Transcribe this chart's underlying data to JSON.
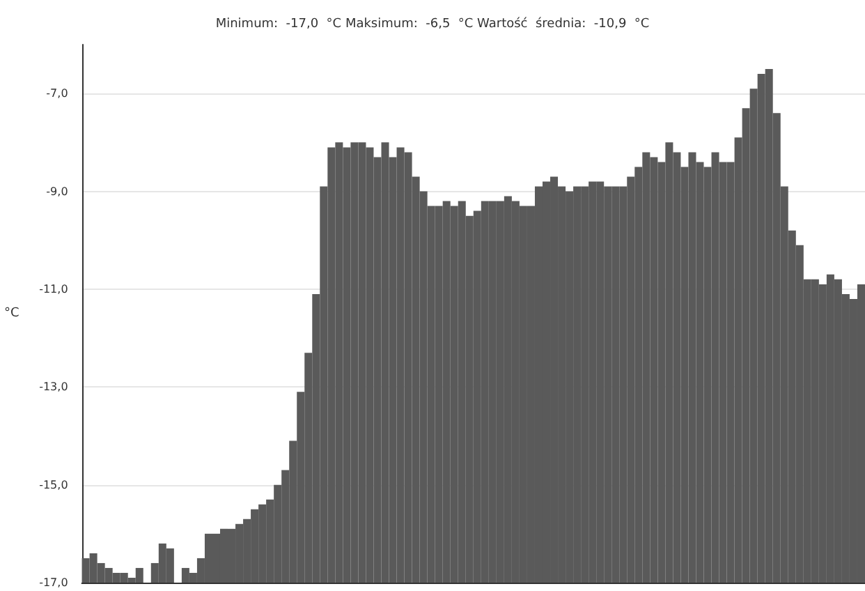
{
  "chart_data": {
    "type": "bar",
    "title": "Minimum:  -17,0  °C Maksimum:  -6,5  °C Wartość  średnia:  -10,9  °C",
    "ylabel": "°C",
    "categories": [
      null,
      null,
      null,
      null,
      null,
      null,
      null,
      null,
      null,
      null,
      null,
      null,
      null,
      null,
      null,
      null,
      null,
      null,
      null,
      null,
      null,
      null,
      null,
      null,
      null,
      null,
      null,
      null,
      null,
      null,
      null,
      null,
      null,
      null,
      null,
      null,
      null,
      null,
      null,
      null,
      null,
      null,
      null,
      null,
      null,
      null,
      null,
      null,
      null,
      null,
      null,
      null,
      null,
      null,
      null,
      null,
      null,
      null,
      null,
      null,
      null,
      null,
      null,
      null,
      null,
      null,
      null,
      null,
      null,
      null,
      null,
      null,
      null,
      null,
      null,
      null,
      null,
      null,
      null,
      null,
      null,
      null,
      null,
      null,
      null,
      null,
      null,
      null,
      null,
      null,
      null,
      null,
      null,
      null,
      null,
      null,
      null,
      null,
      null,
      null,
      null,
      null
    ],
    "values": [
      0.5,
      0.6,
      0.4,
      0.3,
      0.2,
      0.2,
      0.1,
      0.3,
      null,
      0.4,
      0.8,
      0.7,
      null,
      0.3,
      0.2,
      0.5,
      1.0,
      1.0,
      1.1,
      1.1,
      1.2,
      1.3,
      1.5,
      1.6,
      1.7,
      2.0,
      2.3,
      2.9,
      3.9,
      4.7,
      5.9,
      8.1,
      8.9,
      9.0,
      8.9,
      9.0,
      9.0,
      8.9,
      8.7,
      9.0,
      8.7,
      8.9,
      8.8,
      8.3,
      8.0,
      7.7,
      7.7,
      7.8,
      7.7,
      7.8,
      7.5,
      7.6,
      7.8,
      7.8,
      7.8,
      7.9,
      7.8,
      7.7,
      7.7,
      8.1,
      8.2,
      8.3,
      8.1,
      8.0,
      8.1,
      8.1,
      8.2,
      8.2,
      8.1,
      8.1,
      8.1,
      8.3,
      8.5,
      8.8,
      8.7,
      8.6,
      9.0,
      8.8,
      8.5,
      8.8,
      8.6,
      8.5,
      8.8,
      8.6,
      8.6,
      9.1,
      9.7,
      10.1,
      10.4,
      10.5,
      9.6,
      8.1,
      7.2,
      6.9,
      6.2,
      6.2,
      6.1,
      6.3,
      6.2,
      5.9,
      5.8,
      6.1
    ],
    "base": [
      -17,
      -17,
      -17,
      -17,
      -17,
      -17,
      -17,
      -17,
      null,
      -17,
      -17,
      -17,
      null,
      -17,
      -17,
      -17,
      -17,
      -17,
      -17,
      -17,
      -17,
      -17,
      -17,
      -17,
      -17,
      -17,
      -17,
      -17,
      -17,
      -17,
      -17,
      -17,
      -17,
      -17,
      -17,
      -17,
      -17,
      -17,
      -17,
      -17,
      -17,
      -17,
      -17,
      -17,
      -17,
      -17,
      -17,
      -17,
      -17,
      -17,
      -17,
      -17,
      -17,
      -17,
      -17,
      -17,
      -17,
      -17,
      -17,
      -17,
      -17,
      -17,
      -17,
      -17,
      -17,
      -17,
      -17,
      -17,
      -17,
      -17,
      -17,
      -17,
      -17,
      -17,
      -17,
      -17,
      -17,
      -17,
      -17,
      -17,
      -17,
      -17,
      -17,
      -17,
      -17,
      -17,
      -17,
      -17,
      -17,
      -17,
      -17,
      -17,
      -17,
      -17,
      -17,
      -17,
      -17,
      -17,
      -17,
      -17,
      -17,
      -17
    ],
    "color": "#5a5a5a",
    "ylim": [
      -17,
      -6
    ],
    "yticks": [
      {
        "value": -17,
        "label": "-17,0"
      },
      {
        "value": -15,
        "label": "-15,0"
      },
      {
        "value": -13,
        "label": "-13,0"
      },
      {
        "value": -11,
        "label": "-11,0"
      },
      {
        "value": -9,
        "label": "-9,0"
      },
      {
        "value": -7,
        "label": "-7,0"
      }
    ],
    "grid": "y",
    "tick_labels": "y"
  }
}
